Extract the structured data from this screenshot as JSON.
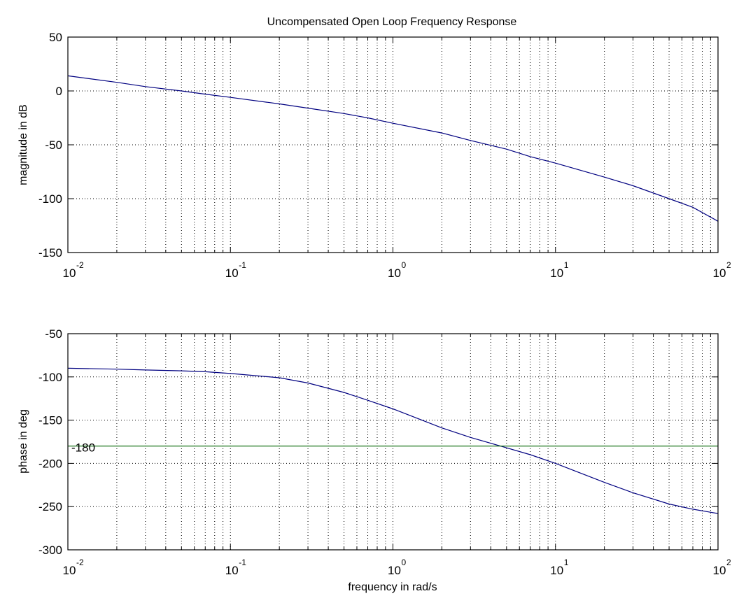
{
  "chart_data": [
    {
      "type": "line",
      "title": "Uncompensated Open Loop Frequency Response",
      "xlabel": "",
      "ylabel": "magnitude in dB",
      "xscale": "log",
      "xlim": [
        0.01,
        100
      ],
      "ylim": [
        -150,
        50
      ],
      "yticks": [
        50,
        0,
        -50,
        -100,
        -150
      ],
      "ytick_labels": [
        "50",
        "0",
        "-50",
        "-100",
        "-150"
      ],
      "xticks": [
        0.01,
        0.1,
        1,
        10,
        100
      ],
      "xtick_labels": [
        {
          "base": "10",
          "exp": "-2"
        },
        {
          "base": "10",
          "exp": "-1"
        },
        {
          "base": "10",
          "exp": "0"
        },
        {
          "base": "10",
          "exp": "1"
        },
        {
          "base": "10",
          "exp": "2"
        }
      ],
      "grid": true,
      "series": [
        {
          "name": "magnitude",
          "color": "#000080",
          "x": [
            0.01,
            0.02,
            0.03,
            0.05,
            0.07,
            0.1,
            0.2,
            0.3,
            0.5,
            0.7,
            1,
            2,
            3,
            5,
            7,
            10,
            20,
            30,
            50,
            70,
            100
          ],
          "y": [
            14,
            8,
            4,
            0,
            -3,
            -6,
            -12,
            -16,
            -21,
            -25,
            -30,
            -39,
            -46,
            -54,
            -61,
            -67,
            -80,
            -88,
            -100,
            -108,
            -121
          ]
        }
      ]
    },
    {
      "type": "line",
      "title": "",
      "xlabel": "frequency in rad/s",
      "ylabel": "phase in deg",
      "xscale": "log",
      "xlim": [
        0.01,
        100
      ],
      "ylim": [
        -300,
        -50
      ],
      "yticks": [
        -50,
        -100,
        -150,
        -200,
        -250,
        -300
      ],
      "ytick_labels": [
        "-50",
        "-100",
        "-150",
        "-200",
        "-250",
        "-300"
      ],
      "xticks": [
        0.01,
        0.1,
        1,
        10,
        100
      ],
      "xtick_labels": [
        {
          "base": "10",
          "exp": "-2"
        },
        {
          "base": "10",
          "exp": "-1"
        },
        {
          "base": "10",
          "exp": "0"
        },
        {
          "base": "10",
          "exp": "1"
        },
        {
          "base": "10",
          "exp": "2"
        }
      ],
      "grid": true,
      "annotations": [
        {
          "text": "-180",
          "x": 0.01,
          "y": -180
        }
      ],
      "series": [
        {
          "name": "phase",
          "color": "#000080",
          "x": [
            0.01,
            0.02,
            0.03,
            0.05,
            0.07,
            0.1,
            0.2,
            0.3,
            0.5,
            0.7,
            1,
            2,
            3,
            4.6,
            7,
            10,
            20,
            30,
            50,
            70,
            100
          ],
          "y": [
            -90,
            -91,
            -92,
            -93,
            -94,
            -96,
            -101,
            -107,
            -118,
            -127,
            -137,
            -159,
            -170,
            -180,
            -190,
            -200,
            -222,
            -234,
            -247,
            -253,
            -258
          ]
        },
        {
          "name": "-180 reference",
          "color": "#006400",
          "x": [
            0.01,
            100
          ],
          "y": [
            -180,
            -180
          ]
        }
      ]
    }
  ]
}
